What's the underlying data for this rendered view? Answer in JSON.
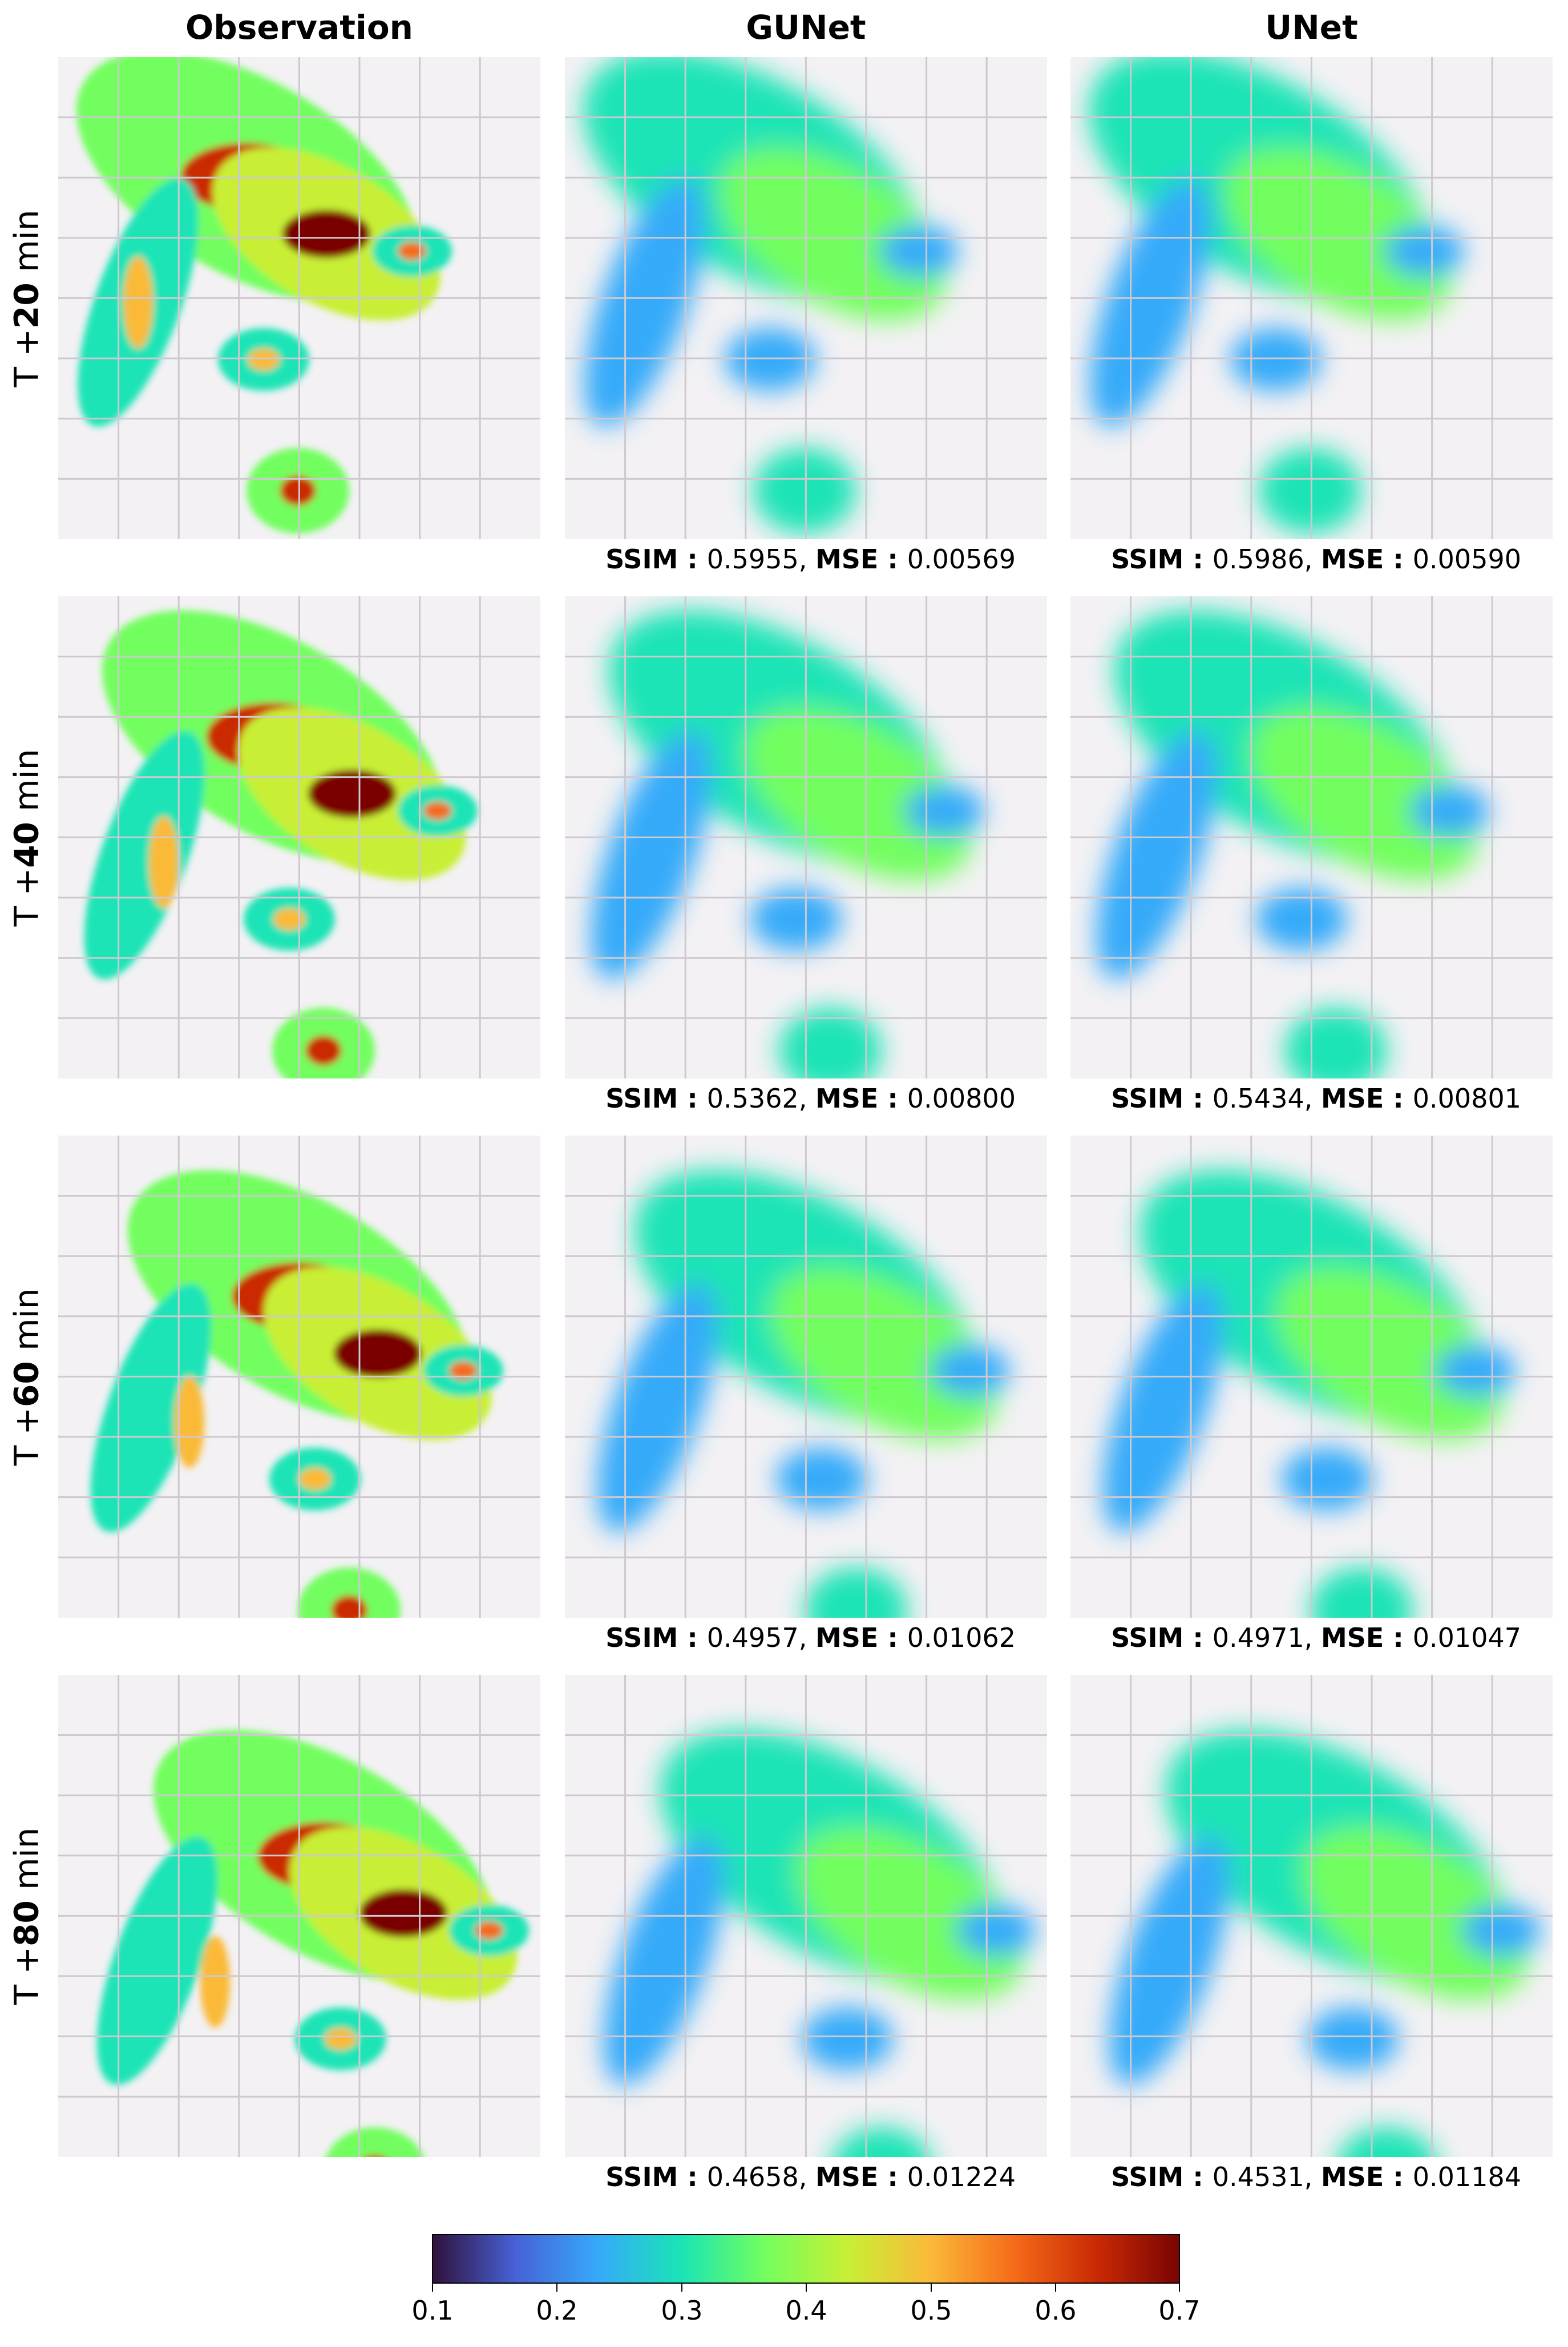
{
  "columns": [
    "Observation",
    "GUNet",
    "UNet"
  ],
  "rows": [
    {
      "prefix": "T +",
      "value": "20",
      "unit": " min",
      "gunet": {
        "ssim": "0.5955",
        "mse": "0.00569"
      },
      "unet": {
        "ssim": "0.5986",
        "mse": "0.00590"
      }
    },
    {
      "prefix": "T +",
      "value": "40",
      "unit": " min",
      "gunet": {
        "ssim": "0.5362",
        "mse": "0.00800"
      },
      "unet": {
        "ssim": "0.5434",
        "mse": "0.00801"
      }
    },
    {
      "prefix": "T +",
      "value": "60",
      "unit": " min",
      "gunet": {
        "ssim": "0.4957",
        "mse": "0.01062"
      },
      "unet": {
        "ssim": "0.4971",
        "mse": "0.01047"
      }
    },
    {
      "prefix": "T +",
      "value": "80",
      "unit": " min",
      "gunet": {
        "ssim": "0.4658",
        "mse": "0.01224"
      },
      "unet": {
        "ssim": "0.4531",
        "mse": "0.01184"
      }
    }
  ],
  "metric_labels": {
    "ssim": "SSIM",
    "mse": "MSE"
  },
  "colorbar": {
    "colormap": "turbo",
    "range": [
      0.1,
      0.7
    ],
    "ticks": [
      "0.1",
      "0.2",
      "0.3",
      "0.4",
      "0.5",
      "0.6",
      "0.7"
    ],
    "colors": [
      "#30123b",
      "#4662d7",
      "#36aaf9",
      "#1ae4b6",
      "#72fe5e",
      "#c8ef34",
      "#faba39",
      "#f66b19",
      "#ca2a04",
      "#7a0403"
    ]
  },
  "panel_background": "#f3f1f4"
}
